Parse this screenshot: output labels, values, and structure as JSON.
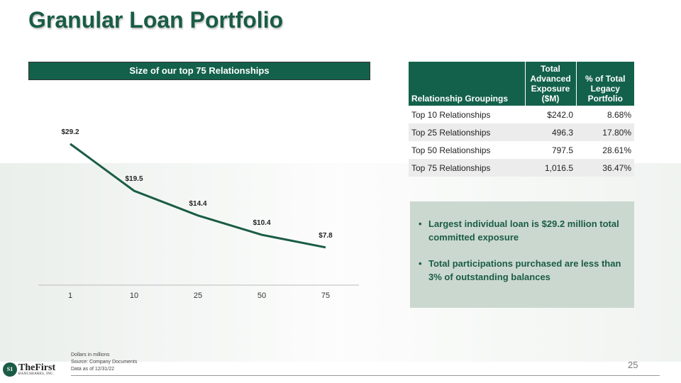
{
  "title": "Granular Loan Portfolio",
  "chart_data": {
    "type": "line",
    "title": "Size of our top 75 Relationships",
    "categories": [
      "1",
      "10",
      "25",
      "50",
      "75"
    ],
    "values": [
      29.2,
      19.5,
      14.4,
      10.4,
      7.8
    ],
    "labels": [
      "$29.2",
      "$19.5",
      "$14.4",
      "$10.4",
      "$7.8"
    ],
    "xlabel": "",
    "ylabel": "",
    "ylim": [
      0,
      40
    ],
    "grid": false,
    "color": "#1a5c45"
  },
  "table": {
    "headers": [
      "Relationship Groupings",
      "Total Advanced Exposure ($M)",
      "% of Total Legacy Portfolio"
    ],
    "rows": [
      [
        "Top 10 Relationships",
        "$242.0",
        "8.68%"
      ],
      [
        "Top 25 Relationships",
        "496.3",
        "17.80%"
      ],
      [
        "Top 50 Relationships",
        "797.5",
        "28.61%"
      ],
      [
        "Top 75 Relationships",
        "1,016.5",
        "36.47%"
      ]
    ]
  },
  "callout": [
    "Largest individual loan is $29.2 million total committed exposure",
    "Total participations purchased are less than 3% of outstanding balances"
  ],
  "footnotes": [
    "Dollars in millions",
    "Source: Company Documents",
    "Data as of 12/31/22"
  ],
  "logo": {
    "seal": "S1",
    "name": "TheFirst",
    "sub": "BANCSHARES, INC."
  },
  "page_number": "25"
}
